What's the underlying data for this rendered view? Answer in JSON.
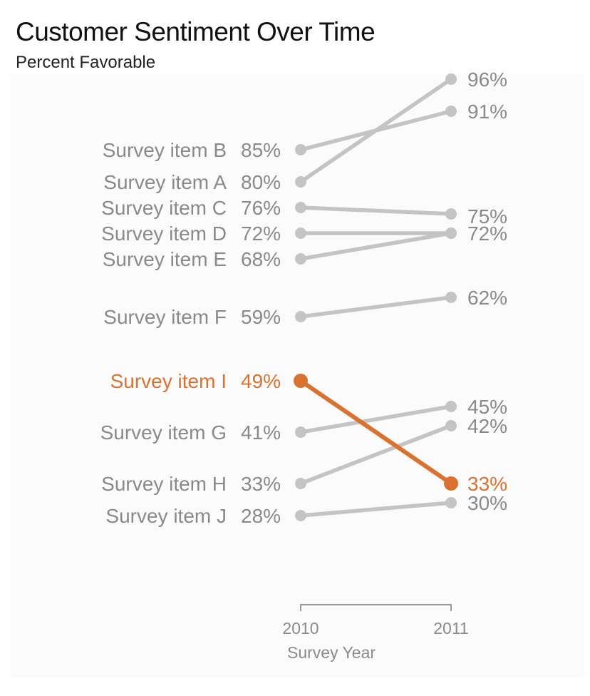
{
  "chart_data": {
    "type": "line",
    "title": "Customer Sentiment Over Time",
    "subtitle": "Percent Favorable",
    "categories": [
      "2010",
      "2011"
    ],
    "xlabel": "Survey Year",
    "ylabel": "",
    "series": [
      {
        "name": "Survey item A",
        "values": [
          80,
          96
        ],
        "labels": [
          "80%",
          "96%"
        ],
        "highlight": false
      },
      {
        "name": "Survey item B",
        "values": [
          85,
          91
        ],
        "labels": [
          "85%",
          "91%"
        ],
        "highlight": false
      },
      {
        "name": "Survey item C",
        "values": [
          76,
          75
        ],
        "labels": [
          "76%",
          "75%"
        ],
        "highlight": false
      },
      {
        "name": "Survey item D",
        "values": [
          72,
          72
        ],
        "labels": [
          "72%",
          "72%"
        ],
        "highlight": false
      },
      {
        "name": "Survey item E",
        "values": [
          68,
          72
        ],
        "labels": [
          "68%",
          ""
        ],
        "highlight": false
      },
      {
        "name": "Survey item F",
        "values": [
          59,
          62
        ],
        "labels": [
          "59%",
          "62%"
        ],
        "highlight": false
      },
      {
        "name": "Survey item I",
        "values": [
          49,
          33
        ],
        "labels": [
          "49%",
          "33%"
        ],
        "highlight": true
      },
      {
        "name": "Survey item G",
        "values": [
          41,
          45
        ],
        "labels": [
          "41%",
          "45%"
        ],
        "highlight": false
      },
      {
        "name": "Survey item H",
        "values": [
          33,
          42
        ],
        "labels": [
          "33%",
          "42%"
        ],
        "highlight": false
      },
      {
        "name": "Survey item J",
        "values": [
          28,
          30
        ],
        "labels": [
          "28%",
          "30%"
        ],
        "highlight": false
      }
    ],
    "colors": {
      "default": "#c4c4c4",
      "highlight": "#d9722f",
      "text": "#8a8a8a"
    },
    "grid": false,
    "legend": "none"
  }
}
